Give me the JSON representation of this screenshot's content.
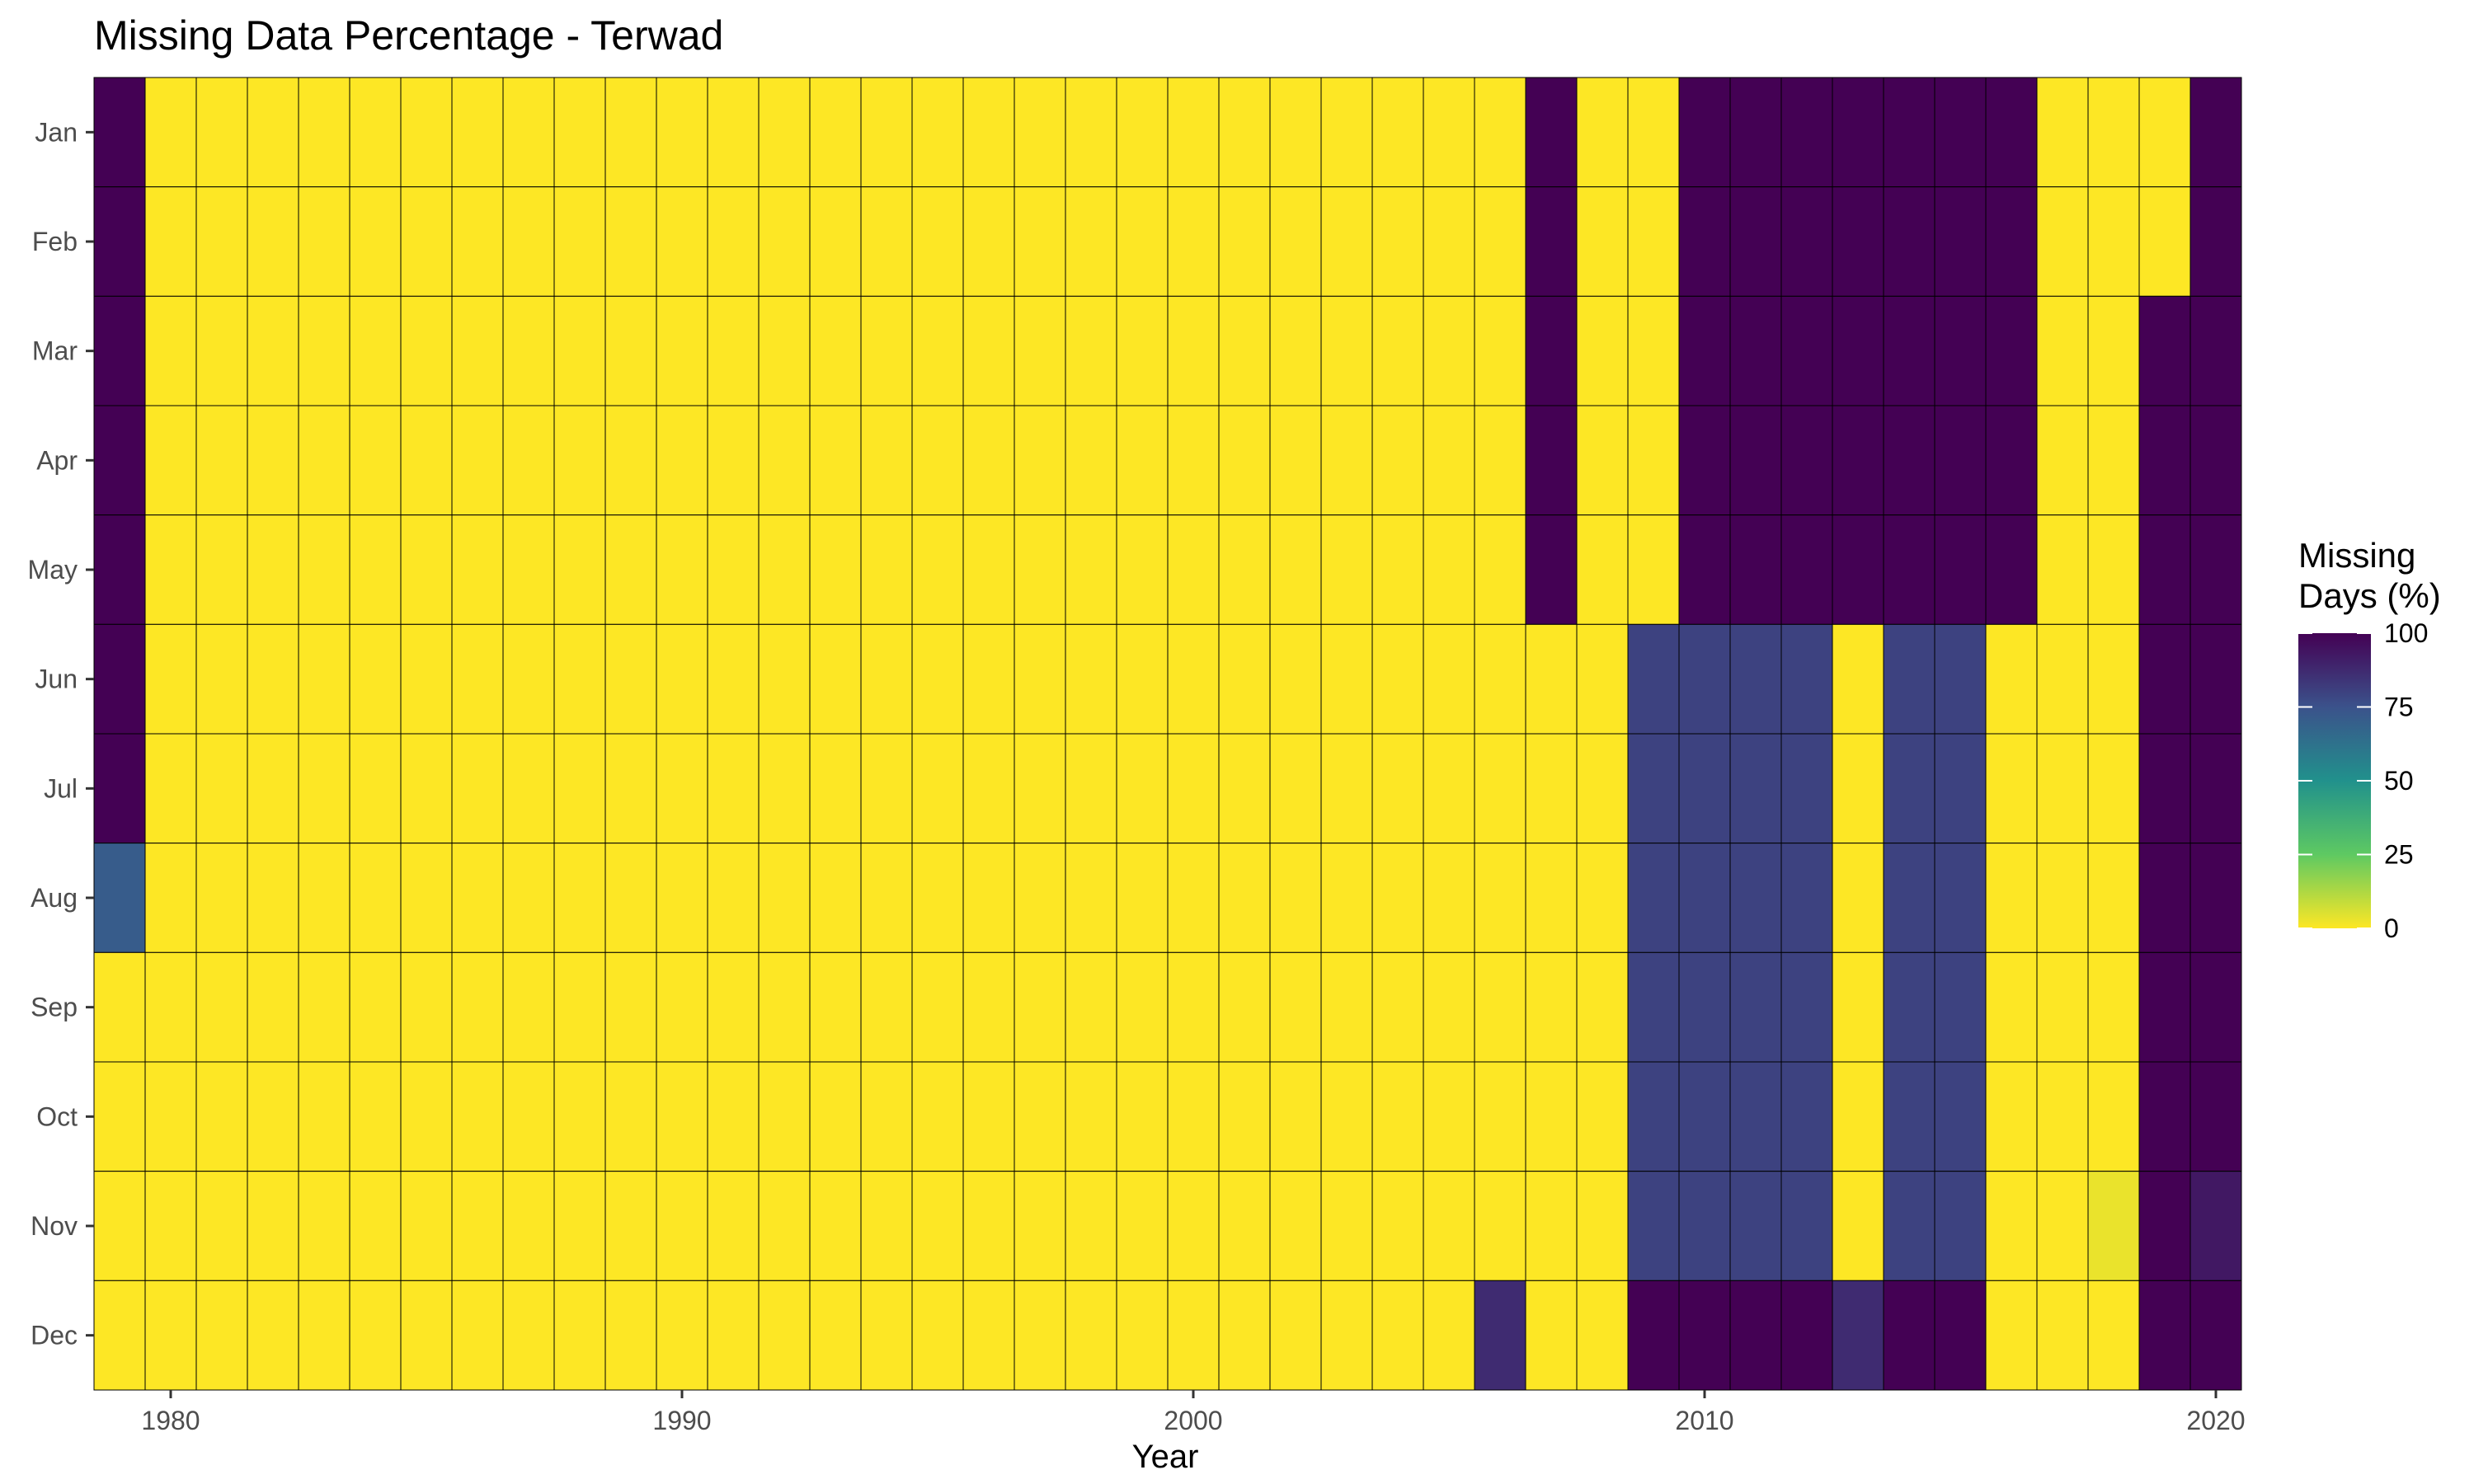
{
  "chart_data": {
    "type": "heatmap",
    "title": "Missing Data Percentage - Terwad",
    "xlabel": "Year",
    "ylabel": "",
    "x": [
      1979,
      1980,
      1981,
      1982,
      1983,
      1984,
      1985,
      1986,
      1987,
      1988,
      1989,
      1990,
      1991,
      1992,
      1993,
      1994,
      1995,
      1996,
      1997,
      1998,
      1999,
      2000,
      2001,
      2002,
      2003,
      2004,
      2005,
      2006,
      2007,
      2008,
      2009,
      2010,
      2011,
      2012,
      2013,
      2014,
      2015,
      2016,
      2017,
      2018,
      2019,
      2020
    ],
    "y": [
      "Jan",
      "Feb",
      "Mar",
      "Apr",
      "May",
      "Jun",
      "Jul",
      "Aug",
      "Sep",
      "Oct",
      "Nov",
      "Dec"
    ],
    "x_ticks": [
      "1980",
      "1990",
      "2000",
      "2010",
      "2020"
    ],
    "x_tick_values": [
      1980,
      1990,
      2000,
      2010,
      2020
    ],
    "grid": false,
    "values": [
      [
        100,
        0,
        0,
        0,
        0,
        0,
        0,
        0,
        0,
        0,
        0,
        0,
        0,
        0,
        0,
        0,
        0,
        0,
        0,
        0,
        0,
        0,
        0,
        0,
        0,
        0,
        0,
        0,
        100,
        0,
        0,
        100,
        100,
        100,
        100,
        100,
        100,
        100,
        0,
        0,
        0,
        100
      ],
      [
        100,
        0,
        0,
        0,
        0,
        0,
        0,
        0,
        0,
        0,
        0,
        0,
        0,
        0,
        0,
        0,
        0,
        0,
        0,
        0,
        0,
        0,
        0,
        0,
        0,
        0,
        0,
        0,
        100,
        0,
        0,
        100,
        100,
        100,
        100,
        100,
        100,
        100,
        0,
        0,
        0,
        100
      ],
      [
        100,
        0,
        0,
        0,
        0,
        0,
        0,
        0,
        0,
        0,
        0,
        0,
        0,
        0,
        0,
        0,
        0,
        0,
        0,
        0,
        0,
        0,
        0,
        0,
        0,
        0,
        0,
        0,
        100,
        0,
        0,
        100,
        100,
        100,
        100,
        100,
        100,
        100,
        0,
        0,
        100,
        100
      ],
      [
        100,
        0,
        0,
        0,
        0,
        0,
        0,
        0,
        0,
        0,
        0,
        0,
        0,
        0,
        0,
        0,
        0,
        0,
        0,
        0,
        0,
        0,
        0,
        0,
        0,
        0,
        0,
        0,
        100,
        0,
        0,
        100,
        100,
        100,
        100,
        100,
        100,
        100,
        0,
        0,
        100,
        100
      ],
      [
        100,
        0,
        0,
        0,
        0,
        0,
        0,
        0,
        0,
        0,
        0,
        0,
        0,
        0,
        0,
        0,
        0,
        0,
        0,
        0,
        0,
        0,
        0,
        0,
        0,
        0,
        0,
        0,
        100,
        0,
        0,
        100,
        100,
        100,
        100,
        100,
        100,
        100,
        0,
        0,
        100,
        100
      ],
      [
        100,
        0,
        0,
        0,
        0,
        0,
        0,
        0,
        0,
        0,
        0,
        0,
        0,
        0,
        0,
        0,
        0,
        0,
        0,
        0,
        0,
        0,
        0,
        0,
        0,
        0,
        0,
        0,
        0,
        0,
        80,
        80,
        80,
        80,
        0,
        80,
        80,
        0,
        0,
        0,
        100,
        100
      ],
      [
        100,
        0,
        0,
        0,
        0,
        0,
        0,
        0,
        0,
        0,
        0,
        0,
        0,
        0,
        0,
        0,
        0,
        0,
        0,
        0,
        0,
        0,
        0,
        0,
        0,
        0,
        0,
        0,
        0,
        0,
        80,
        80,
        80,
        80,
        0,
        80,
        80,
        0,
        0,
        0,
        100,
        100
      ],
      [
        71,
        0,
        0,
        0,
        0,
        0,
        0,
        0,
        0,
        0,
        0,
        0,
        0,
        0,
        0,
        0,
        0,
        0,
        0,
        0,
        0,
        0,
        0,
        0,
        0,
        0,
        0,
        0,
        0,
        0,
        80,
        80,
        80,
        80,
        0,
        80,
        80,
        0,
        0,
        0,
        100,
        100
      ],
      [
        0,
        0,
        0,
        0,
        0,
        0,
        0,
        0,
        0,
        0,
        0,
        0,
        0,
        0,
        0,
        0,
        0,
        0,
        0,
        0,
        0,
        0,
        0,
        0,
        0,
        0,
        0,
        0,
        0,
        0,
        80,
        80,
        80,
        80,
        0,
        80,
        80,
        0,
        0,
        0,
        100,
        100
      ],
      [
        0,
        0,
        0,
        0,
        0,
        0,
        0,
        0,
        0,
        0,
        0,
        0,
        0,
        0,
        0,
        0,
        0,
        0,
        0,
        0,
        0,
        0,
        0,
        0,
        0,
        0,
        0,
        0,
        0,
        0,
        80,
        80,
        80,
        80,
        0,
        80,
        80,
        0,
        0,
        0,
        100,
        100
      ],
      [
        0,
        0,
        0,
        0,
        0,
        0,
        0,
        0,
        0,
        0,
        0,
        0,
        0,
        0,
        0,
        0,
        0,
        0,
        0,
        0,
        0,
        0,
        0,
        0,
        0,
        0,
        0,
        0,
        0,
        0,
        80,
        80,
        80,
        80,
        0,
        80,
        80,
        0,
        0,
        3,
        100,
        93
      ],
      [
        0,
        0,
        0,
        0,
        0,
        0,
        0,
        0,
        0,
        0,
        0,
        0,
        0,
        0,
        0,
        0,
        0,
        0,
        0,
        0,
        0,
        0,
        0,
        0,
        0,
        0,
        0,
        87,
        0,
        0,
        100,
        100,
        100,
        100,
        87,
        100,
        100,
        0,
        0,
        0,
        100,
        100
      ]
    ],
    "legend": {
      "title_line1": "Missing",
      "title_line2": "Days (%)",
      "placement": "right",
      "range": [
        0,
        100
      ],
      "ticks": [
        "100",
        "75",
        "50",
        "25",
        "0"
      ],
      "tick_values": [
        100,
        75,
        50,
        25,
        0
      ]
    },
    "colorscale": [
      "#fde725",
      "#5ec962",
      "#21918c",
      "#3b528b",
      "#440154"
    ]
  }
}
